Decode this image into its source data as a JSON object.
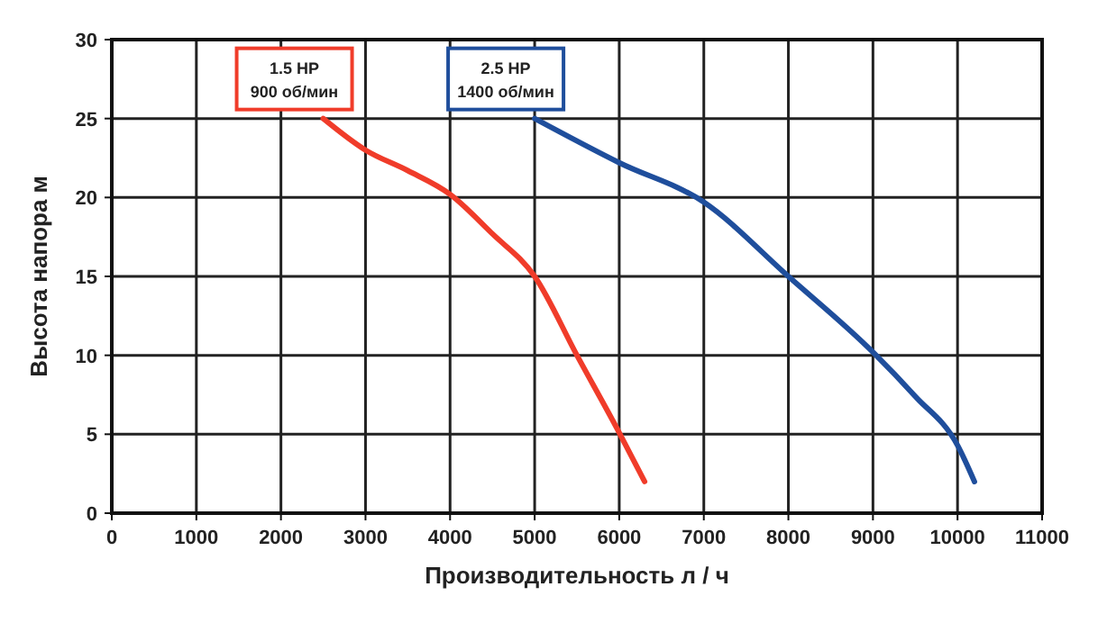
{
  "chart_data": {
    "type": "line",
    "xlabel": "Производительность л / ч",
    "ylabel": "Высота напора м",
    "xlim": [
      0,
      11000
    ],
    "xticks": [
      0,
      1000,
      2000,
      3000,
      4000,
      5000,
      6000,
      7000,
      8000,
      9000,
      10000,
      11000
    ],
    "ylim": [
      0,
      30
    ],
    "yticks": [
      0,
      5,
      10,
      15,
      20,
      25,
      30
    ],
    "grid": true,
    "line_style": "solid",
    "series": [
      {
        "name": "1.5 HP\n900 об/мин",
        "color": "#f03c2a",
        "x": [
          2500,
          3000,
          3500,
          4000,
          4500,
          5000,
          5500,
          6000,
          6300
        ],
        "values": [
          25,
          23,
          21.7,
          20.2,
          17.7,
          15,
          10,
          5.1,
          2
        ]
      },
      {
        "name": "2.5 HP\n1400 об/мин",
        "color": "#1f4e9c",
        "x": [
          5000,
          6000,
          7000,
          8000,
          9000,
          9500,
          10000,
          10200
        ],
        "values": [
          25,
          22.2,
          19.7,
          15,
          10.2,
          7.4,
          4.3,
          2
        ]
      }
    ]
  }
}
